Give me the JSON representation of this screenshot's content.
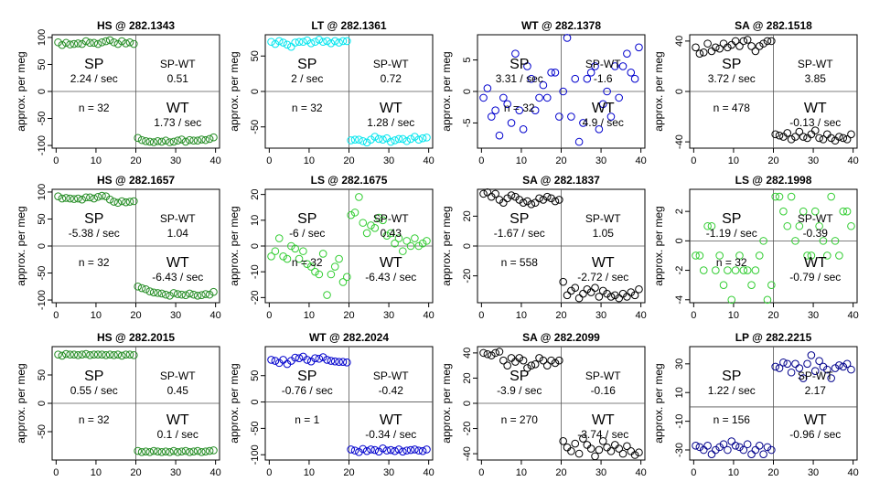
{
  "chart_data": [
    {
      "type": "scatter",
      "title": "HS @ 282.1343",
      "ylabel": "approx. per meg",
      "ylim": [
        -105,
        105
      ],
      "yticks": [
        -100,
        -50,
        0,
        50,
        100
      ],
      "xlim": [
        -1,
        41
      ],
      "xticks": [
        0,
        10,
        20,
        30,
        40
      ],
      "color": "#228B22",
      "points_half1": [
        91,
        86,
        90,
        87,
        88,
        89,
        88,
        93,
        90,
        90,
        88,
        91,
        93,
        95,
        91,
        88,
        93,
        89,
        91,
        88
      ],
      "points_half2": [
        -86,
        -90,
        -92,
        -93,
        -94,
        -92,
        -93,
        -91,
        -94,
        -93,
        -91,
        -89,
        -93,
        -90,
        -91,
        -91,
        -89,
        -90,
        -88,
        -85
      ],
      "sp_label": "SP",
      "sp_rate": "2.24 / sec",
      "spwt_label": "SP-WT",
      "spwt_value": "0.51",
      "n_label": "n = 32",
      "wt_label": "WT",
      "wt_rate": "1.73 / sec"
    },
    {
      "type": "scatter",
      "title": "LT @ 282.1361",
      "ylabel": "approx. per meg",
      "ylim": [
        -80,
        80
      ],
      "yticks": [
        -50,
        0,
        50
      ],
      "xlim": [
        -1,
        41
      ],
      "xticks": [
        0,
        10,
        20,
        30,
        40
      ],
      "color": "#00E5EE",
      "points_half1": [
        70,
        67,
        71,
        69,
        66,
        63,
        69,
        70,
        70,
        72,
        68,
        70,
        73,
        70,
        71,
        68,
        71,
        69,
        71,
        71
      ],
      "points_half2": [
        -69,
        -68,
        -68,
        -70,
        -72,
        -68,
        -64,
        -67,
        -68,
        -66,
        -71,
        -69,
        -67,
        -67,
        -70,
        -67,
        -64,
        -68,
        -66,
        -65
      ],
      "sp_label": "SP",
      "sp_rate": "2 / sec",
      "spwt_label": "SP-WT",
      "spwt_value": "0.72",
      "n_label": "n = 32",
      "wt_label": "WT",
      "wt_rate": "1.28 / sec"
    },
    {
      "type": "scatter",
      "title": "WT @ 282.1378",
      "ylabel": "approx. per meg",
      "ylim": [
        -9,
        9
      ],
      "yticks": [
        -5,
        0,
        5
      ],
      "xlim": [
        -1,
        41
      ],
      "xticks": [
        0,
        10,
        20,
        30,
        40
      ],
      "color": "#0000CD",
      "points_half1": [
        -1,
        0.5,
        -4,
        -3,
        -7,
        -1,
        -2,
        -5,
        6,
        -3,
        -6,
        4,
        2,
        -3,
        -1,
        1,
        -1,
        3,
        3,
        -4
      ],
      "points_half2": [
        0,
        8.5,
        -4,
        2,
        -8,
        -5,
        2,
        3,
        4,
        -6,
        -2,
        0,
        -4,
        4,
        -1,
        4,
        6,
        3,
        2,
        7
      ],
      "sp_label": "SP",
      "sp_rate": "3.31 / sec",
      "spwt_label": "SP-WT",
      "spwt_value": "-1.6",
      "n_label": "n = 32",
      "wt_label": "WT",
      "wt_rate": "4.9 / sec"
    },
    {
      "type": "scatter",
      "title": "SA @ 282.1518",
      "ylabel": "approx. per meg",
      "ylim": [
        -45,
        45
      ],
      "yticks": [
        -40,
        0,
        40
      ],
      "xlim": [
        -1,
        41
      ],
      "xticks": [
        0,
        10,
        20,
        30,
        40
      ],
      "color": "#000000",
      "points_half1": [
        35,
        30,
        31,
        38,
        32,
        35,
        34,
        38,
        35,
        37,
        40,
        36,
        40,
        41,
        36,
        32,
        36,
        38,
        40,
        40
      ],
      "points_half2": [
        -34,
        -35,
        -36,
        -33,
        -38,
        -36,
        -32,
        -36,
        -37,
        -34,
        -31,
        -37,
        -38,
        -34,
        -37,
        -39,
        -36,
        -37,
        -38,
        -34
      ],
      "sp_label": "SP",
      "sp_rate": "3.72 / sec",
      "spwt_label": "SP-WT",
      "spwt_value": "3.85",
      "n_label": "n = 478",
      "wt_label": "WT",
      "wt_rate": "-0.13 / sec"
    },
    {
      "type": "scatter",
      "title": "HS @ 282.1657",
      "ylabel": "approx. per meg",
      "ylim": [
        -105,
        105
      ],
      "yticks": [
        -100,
        -50,
        0,
        50,
        100
      ],
      "xlim": [
        -1,
        41
      ],
      "xticks": [
        0,
        10,
        20,
        30,
        40
      ],
      "color": "#228B22",
      "points_half1": [
        92,
        88,
        89,
        88,
        87,
        88,
        86,
        90,
        90,
        88,
        91,
        93,
        92,
        86,
        82,
        80,
        83,
        81,
        82,
        83
      ],
      "points_half2": [
        -75,
        -78,
        -80,
        -84,
        -86,
        -87,
        -88,
        -90,
        -92,
        -87,
        -89,
        -90,
        -91,
        -88,
        -90,
        -92,
        -91,
        -89,
        -90,
        -85
      ],
      "sp_label": "SP",
      "sp_rate": "-5.38 / sec",
      "spwt_label": "SP-WT",
      "spwt_value": "1.04",
      "n_label": "n = 32",
      "wt_label": "WT",
      "wt_rate": "-6.43 / sec"
    },
    {
      "type": "scatter",
      "title": "LS @ 282.1675",
      "ylabel": "approx. per meg",
      "ylim": [
        -22,
        22
      ],
      "yticks": [
        -20,
        -10,
        0,
        10,
        20
      ],
      "xlim": [
        -1,
        41
      ],
      "xticks": [
        0,
        10,
        20,
        30,
        40
      ],
      "color": "#32CD32",
      "points_half1": [
        -4,
        -2,
        3,
        -4,
        -5,
        0,
        -1,
        -5,
        -2,
        -7,
        -8,
        -10,
        -11,
        -3,
        -19,
        -11,
        -8,
        -5,
        -14,
        -12
      ],
      "points_half2": [
        12,
        13,
        19,
        9,
        5,
        8,
        7,
        11,
        10,
        4,
        5,
        1,
        3,
        -2,
        2,
        0,
        3,
        0,
        1,
        2
      ],
      "sp_label": "SP",
      "sp_rate": "-6 / sec",
      "spwt_label": "SP-WT",
      "spwt_value": "0.43",
      "n_label": "n = 32",
      "wt_label": "WT",
      "wt_rate": "-6.43 / sec"
    },
    {
      "type": "scatter",
      "title": "SA @ 282.1837",
      "ylabel": "approx. per meg",
      "ylim": [
        -38,
        38
      ],
      "yticks": [
        -20,
        0,
        20
      ],
      "xlim": [
        -1,
        41
      ],
      "xticks": [
        0,
        10,
        20,
        30,
        40
      ],
      "color": "#000000",
      "points_half1": [
        35,
        36,
        33,
        35,
        31,
        29,
        32,
        34,
        33,
        31,
        29,
        30,
        28,
        29,
        32,
        31,
        33,
        32,
        30,
        31
      ],
      "points_half2": [
        -24,
        -33,
        -30,
        -28,
        -35,
        -32,
        -29,
        -31,
        -28,
        -34,
        -30,
        -32,
        -34,
        -33,
        -35,
        -32,
        -34,
        -31,
        -33,
        -29
      ],
      "sp_label": "SP",
      "sp_rate": "-1.67 / sec",
      "spwt_label": "SP-WT",
      "spwt_value": "1.05",
      "n_label": "n = 558",
      "wt_label": "WT",
      "wt_rate": "-2.72 / sec"
    },
    {
      "type": "scatter",
      "title": "LS @ 282.1998",
      "ylabel": "approx. per meg",
      "ylim": [
        -4.2,
        3.5
      ],
      "yticks": [
        -4,
        -2,
        0,
        2
      ],
      "xlim": [
        -1,
        41
      ],
      "xticks": [
        0,
        10,
        20,
        30,
        40
      ],
      "color": "#32CD32",
      "points_half1": [
        -1,
        -1,
        -2,
        1,
        1,
        -2,
        -1,
        -3,
        -2,
        -4,
        -2,
        -1,
        -2,
        -2,
        -3,
        -2,
        -1,
        0,
        -4,
        -3
      ],
      "points_half2": [
        3,
        3,
        2,
        1,
        3,
        0,
        1,
        2,
        -1,
        -1,
        2,
        1,
        0,
        -1,
        3,
        0,
        -1,
        2,
        2,
        1
      ],
      "sp_label": "SP",
      "sp_rate": "-1.19 / sec",
      "spwt_label": "SP-WT",
      "spwt_value": "-0.39",
      "n_label": "n = 32",
      "wt_label": "WT",
      "wt_rate": "-0.79 / sec"
    },
    {
      "type": "scatter",
      "title": "HS @ 282.2015",
      "ylabel": "approx. per meg",
      "ylim": [
        -100,
        100
      ],
      "yticks": [
        -50,
        0,
        50
      ],
      "xlim": [
        -1,
        41
      ],
      "xticks": [
        0,
        10,
        20,
        30,
        40
      ],
      "color": "#228B22",
      "points_half1": [
        86,
        84,
        87,
        86,
        86,
        85,
        86,
        87,
        85,
        86,
        86,
        86,
        85,
        86,
        85,
        86,
        84,
        86,
        86,
        85
      ],
      "points_half2": [
        -84,
        -86,
        -85,
        -86,
        -84,
        -85,
        -86,
        -85,
        -86,
        -84,
        -86,
        -85,
        -84,
        -86,
        -85,
        -84,
        -86,
        -85,
        -84,
        -83
      ],
      "sp_label": "SP",
      "sp_rate": "0.55 / sec",
      "spwt_label": "SP-WT",
      "spwt_value": "0.45",
      "n_label": "n = 32",
      "wt_label": "WT",
      "wt_rate": "0.1 / sec"
    },
    {
      "type": "scatter",
      "title": "WT @ 282.2024",
      "ylabel": "approx. per meg",
      "ylim": [
        -110,
        105
      ],
      "yticks": [
        -100,
        -50,
        0,
        50
      ],
      "xlim": [
        -1,
        41
      ],
      "xticks": [
        0,
        10,
        20,
        30,
        40
      ],
      "color": "#0000CD",
      "points_half1": [
        80,
        78,
        74,
        80,
        72,
        78,
        84,
        83,
        86,
        80,
        77,
        83,
        82,
        85,
        80,
        78,
        77,
        76,
        76,
        75
      ],
      "points_half2": [
        -90,
        -92,
        -95,
        -89,
        -93,
        -90,
        -91,
        -94,
        -88,
        -92,
        -91,
        -93,
        -90,
        -94,
        -92,
        -91,
        -90,
        -92,
        -93,
        -90
      ],
      "sp_label": "SP",
      "sp_rate": "-0.76 / sec",
      "spwt_label": "SP-WT",
      "spwt_value": "-0.42",
      "n_label": "n = 1",
      "wt_label": "WT",
      "wt_rate": "-0.34 / sec"
    },
    {
      "type": "scatter",
      "title": "SA @ 282.2099",
      "ylabel": "approx. per meg",
      "ylim": [
        -45,
        45
      ],
      "yticks": [
        -40,
        -20,
        0,
        20,
        40
      ],
      "xlim": [
        -1,
        41
      ],
      "xticks": [
        0,
        10,
        20,
        30,
        40
      ],
      "color": "#000000",
      "points_half1": [
        40,
        39,
        38,
        40,
        41,
        34,
        30,
        36,
        33,
        36,
        34,
        28,
        30,
        31,
        36,
        34,
        30,
        34,
        32,
        34
      ],
      "points_half2": [
        -30,
        -35,
        -38,
        -32,
        -40,
        -28,
        -33,
        -36,
        -42,
        -37,
        -30,
        -35,
        -38,
        -33,
        -36,
        -40,
        -34,
        -38,
        -41,
        -39
      ],
      "sp_label": "SP",
      "sp_rate": "-3.9 / sec",
      "spwt_label": "SP-WT",
      "spwt_value": "-0.16",
      "n_label": "n = 270",
      "wt_label": "WT",
      "wt_rate": "-3.74 / sec"
    },
    {
      "type": "scatter",
      "title": "LP @ 282.2215",
      "ylabel": "approx. per meg",
      "ylim": [
        -37,
        42
      ],
      "yticks": [
        -30,
        -10,
        10,
        30
      ],
      "xlim": [
        -1,
        41
      ],
      "xticks": [
        0,
        10,
        20,
        30,
        40
      ],
      "color": "#00008B",
      "points_half1": [
        -27,
        -28,
        -30,
        -27,
        -33,
        -30,
        -28,
        -26,
        -30,
        -24,
        -27,
        -28,
        -30,
        -26,
        -33,
        -30,
        -27,
        -33,
        -28,
        -30
      ],
      "points_half2": [
        28,
        27,
        31,
        30,
        24,
        30,
        27,
        20,
        30,
        36,
        25,
        32,
        28,
        26,
        20,
        27,
        29,
        28,
        30,
        26
      ],
      "sp_label": "SP",
      "sp_rate": "1.22 / sec",
      "spwt_label": "SP-WT",
      "spwt_value": "2.17",
      "n_label": "n = 156",
      "wt_label": "WT",
      "wt_rate": "-0.96 / sec"
    }
  ]
}
